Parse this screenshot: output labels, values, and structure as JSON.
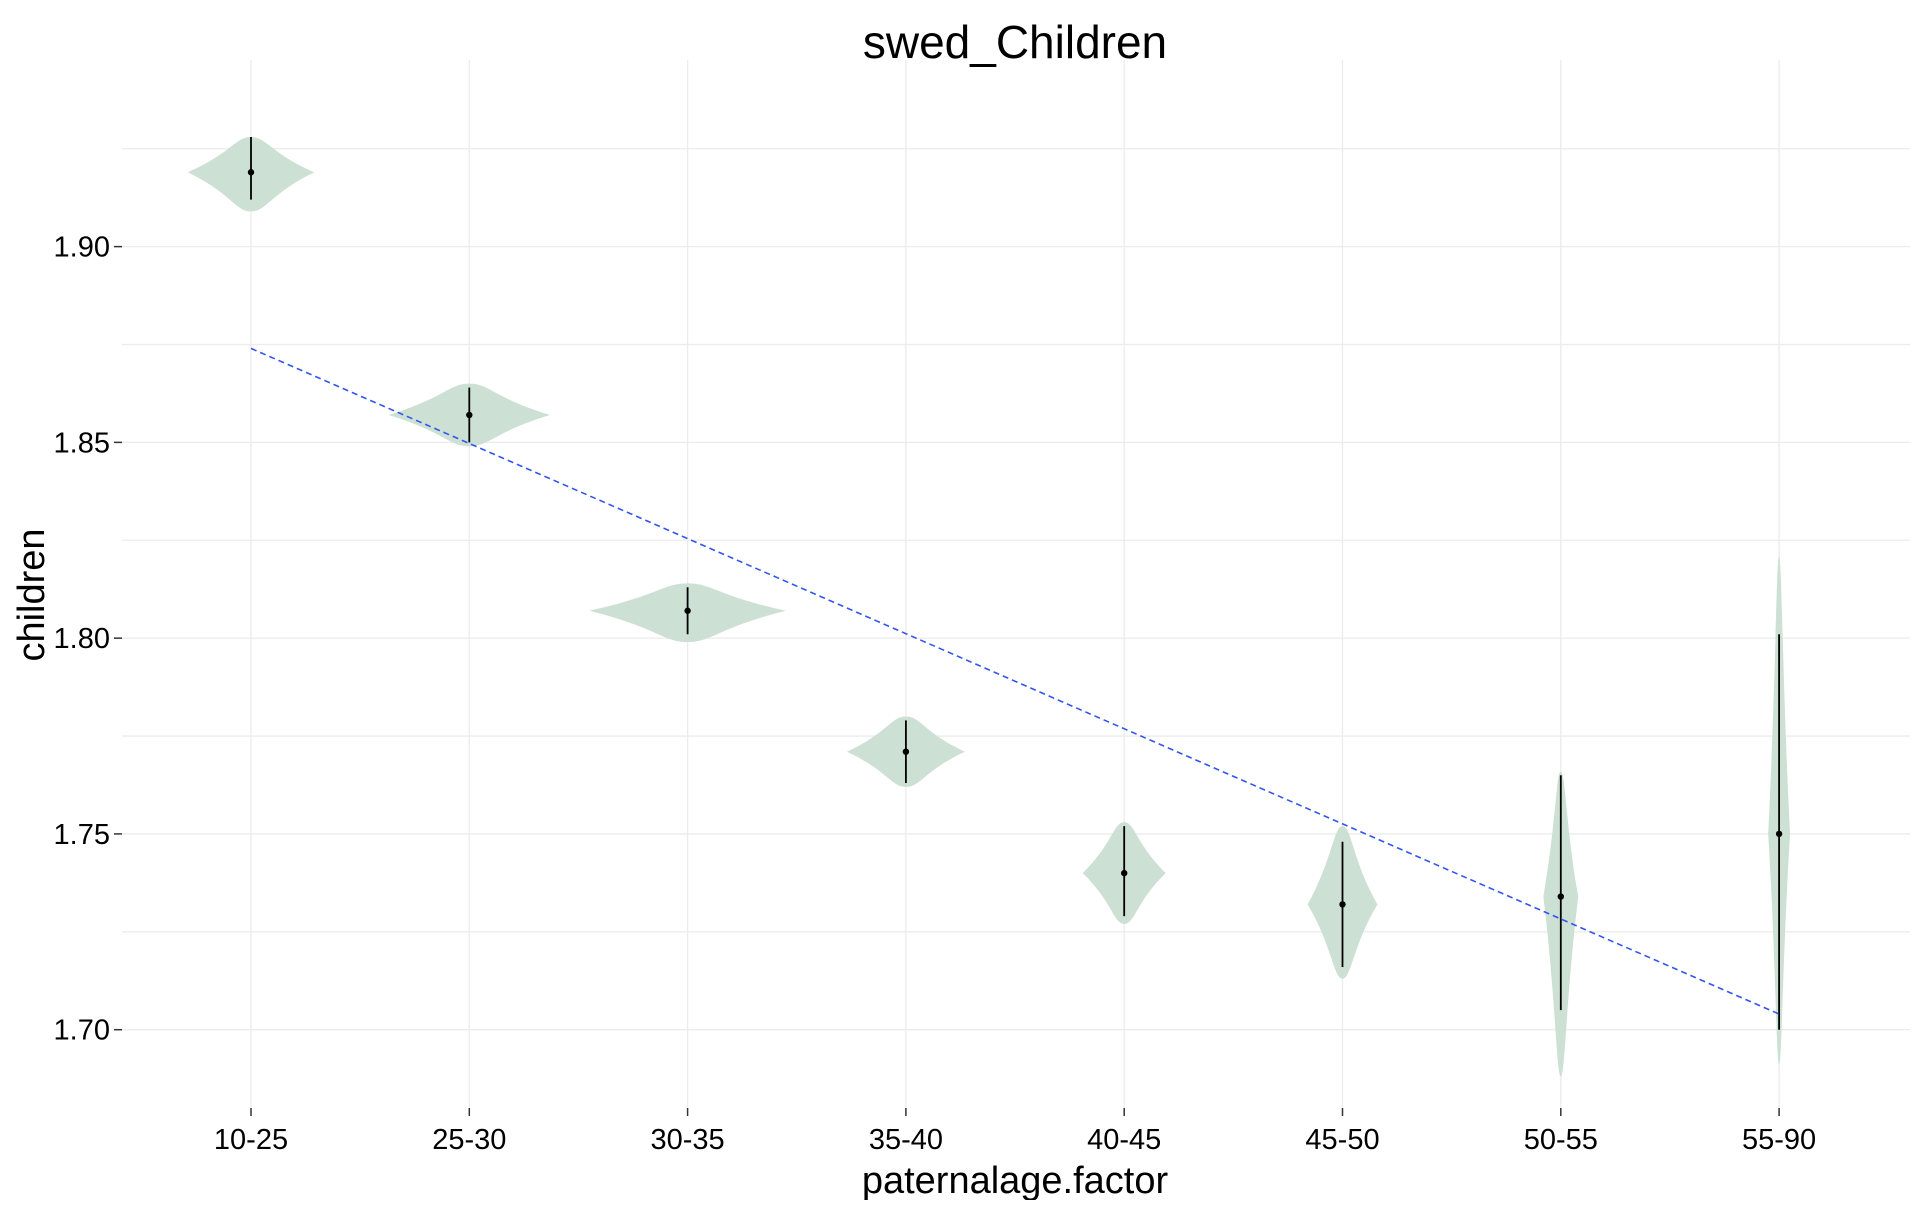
{
  "chart_data": {
    "type": "violin",
    "title": "swed_Children",
    "xlabel": "paternalage.factor",
    "ylabel": "children",
    "categories": [
      "10-25",
      "25-30",
      "30-35",
      "35-40",
      "40-45",
      "45-50",
      "50-55",
      "55-90"
    ],
    "ylim": [
      1.68,
      1.94
    ],
    "yticks": [
      "1.70",
      "1.75",
      "1.80",
      "1.85",
      "1.90"
    ],
    "grid": true,
    "violins": [
      {
        "category": "10-25",
        "point": 1.919,
        "lower": 1.912,
        "upper": 1.928,
        "min": 1.909,
        "max": 1.928,
        "half_width": 0.29
      },
      {
        "category": "25-30",
        "point": 1.857,
        "lower": 1.85,
        "upper": 1.864,
        "min": 1.849,
        "max": 1.865,
        "half_width": 0.37
      },
      {
        "category": "30-35",
        "point": 1.807,
        "lower": 1.801,
        "upper": 1.813,
        "min": 1.799,
        "max": 1.814,
        "half_width": 0.45
      },
      {
        "category": "35-40",
        "point": 1.771,
        "lower": 1.763,
        "upper": 1.779,
        "min": 1.762,
        "max": 1.78,
        "half_width": 0.27
      },
      {
        "category": "40-45",
        "point": 1.74,
        "lower": 1.729,
        "upper": 1.752,
        "min": 1.727,
        "max": 1.753,
        "half_width": 0.19
      },
      {
        "category": "45-50",
        "point": 1.732,
        "lower": 1.716,
        "upper": 1.748,
        "min": 1.713,
        "max": 1.752,
        "half_width": 0.16
      },
      {
        "category": "50-55",
        "point": 1.734,
        "lower": 1.705,
        "upper": 1.765,
        "min": 1.688,
        "max": 1.766,
        "half_width": 0.08
      },
      {
        "category": "55-90",
        "point": 1.75,
        "lower": 1.7,
        "upper": 1.801,
        "min": 1.691,
        "max": 1.821,
        "half_width": 0.05
      }
    ],
    "trend_line": {
      "x_start": 1,
      "y_start": 1.874,
      "x_end": 8,
      "y_end": 1.704,
      "style": "dashed"
    },
    "colors": {
      "violin_fill": "#cde0d4",
      "trend": "#3355ee",
      "grid": "#ececec",
      "point": "#000000"
    }
  }
}
